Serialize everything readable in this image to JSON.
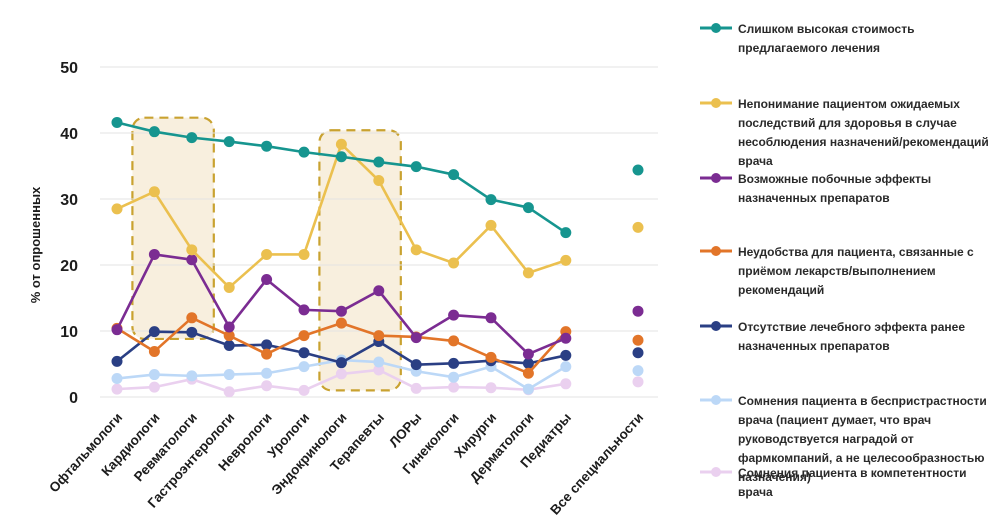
{
  "chart_data": {
    "type": "line",
    "ylabel": "% от опрошенных",
    "xlabel": "",
    "ylim": [
      0,
      50
    ],
    "yticks": [
      0,
      10,
      20,
      30,
      40,
      50
    ],
    "grid": true,
    "legend_position": "right",
    "categories": [
      "Офтальмологи",
      "Кардиологи",
      "Ревматологи",
      "Гастроэнтерологи",
      "Неврологи",
      "Урологи",
      "Эндокринологи",
      "Терапевты",
      "ЛОРы",
      "Гинекологи",
      "Хирурги",
      "Дерматологи",
      "Педиатры",
      "Все специальности"
    ],
    "series": [
      {
        "name": "Слишком высокая стоимость предлагаемого лечения",
        "color": "#16958f",
        "values": [
          41.6,
          40.2,
          39.3,
          38.7,
          38.0,
          37.1,
          36.4,
          35.6,
          34.9,
          33.7,
          29.9,
          28.7,
          24.9,
          34.4
        ]
      },
      {
        "name": "Непонимание пациентом ожидаемых последствий для здоровья в случае несоблюдения назначений/рекомендаций врача",
        "color": "#ebc04f",
        "values": [
          28.5,
          31.1,
          22.3,
          16.6,
          21.6,
          21.6,
          38.3,
          32.8,
          22.3,
          20.3,
          26.0,
          18.8,
          20.7,
          25.7
        ]
      },
      {
        "name": "Возможные побочные эффекты назначенных препаратов",
        "color": "#7b2c92",
        "values": [
          10.2,
          21.6,
          20.8,
          10.6,
          17.8,
          13.2,
          13.0,
          16.1,
          9.0,
          12.4,
          12.0,
          6.5,
          8.9,
          13.0
        ]
      },
      {
        "name": "Неудобства для пациента, связанные с приёмом лекарств/выполнением рекомендаций",
        "color": "#e27529",
        "values": [
          10.4,
          6.9,
          12.0,
          9.3,
          6.5,
          9.3,
          11.2,
          9.3,
          9.1,
          8.5,
          6.0,
          3.6,
          9.9,
          8.6
        ]
      },
      {
        "name": "Отсутствие лечебного эффекта ранее назначенных препаратов",
        "color": "#2a3f84",
        "values": [
          5.4,
          9.9,
          9.8,
          7.8,
          7.9,
          6.7,
          5.2,
          8.4,
          4.9,
          5.1,
          5.5,
          5.1,
          6.3,
          6.7
        ]
      },
      {
        "name": "Сомнения пациента в беспристрастности врача (пациент думает, что врач руководствуется наградой от фармкомпаний, а не целесообразностью назначения)",
        "color": "#bcd8f7",
        "values": [
          2.8,
          3.4,
          3.2,
          3.4,
          3.6,
          4.6,
          5.6,
          5.3,
          3.9,
          3.0,
          4.6,
          1.2,
          4.6,
          4.0
        ]
      },
      {
        "name": "Сомнения пациента в компетентности врача",
        "color": "#ead0ef",
        "values": [
          1.2,
          1.5,
          2.7,
          0.8,
          1.7,
          1.0,
          3.5,
          4.1,
          1.3,
          1.5,
          1.4,
          1.1,
          2.0,
          2.3
        ]
      }
    ],
    "highlights": [
      {
        "from": "Кардиологи",
        "to": "Ревматологи"
      },
      {
        "from": "Эндокринологи",
        "to": "Терапевты"
      }
    ]
  }
}
